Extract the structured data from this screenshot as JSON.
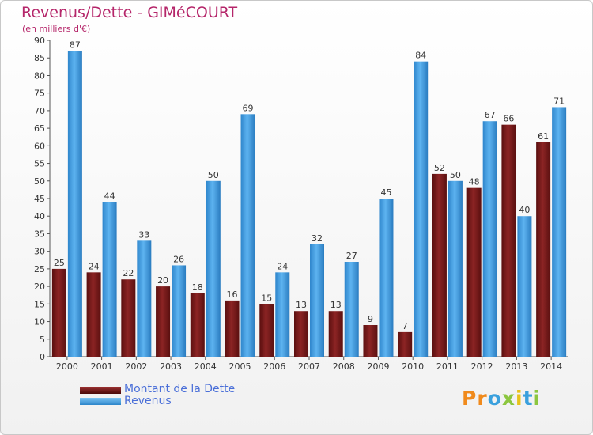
{
  "chart_data": {
    "type": "bar",
    "title": "Revenus/Dette - GIMéCOURT",
    "subtitle": "(en milliers d'€)",
    "categories": [
      "2000",
      "2001",
      "2002",
      "2003",
      "2004",
      "2005",
      "2006",
      "2007",
      "2008",
      "2009",
      "2010",
      "2011",
      "2012",
      "2013",
      "2014"
    ],
    "series": [
      {
        "name": "Montant de la Dette",
        "color": "#7a1a1a",
        "values": [
          25,
          24,
          22,
          20,
          18,
          16,
          15,
          13,
          13,
          9,
          7,
          52,
          48,
          66,
          61
        ]
      },
      {
        "name": "Revenus",
        "color": "#3d9be0",
        "values": [
          87,
          44,
          33,
          26,
          50,
          69,
          24,
          32,
          27,
          45,
          84,
          50,
          67,
          40,
          71
        ]
      }
    ],
    "ylim": [
      0,
      90
    ],
    "ytick_step": 5,
    "yticks": [
      "0",
      "5",
      "10",
      "15",
      "20",
      "25",
      "30",
      "35",
      "40",
      "45",
      "50",
      "55",
      "60",
      "65",
      "70",
      "75",
      "80",
      "85",
      "90"
    ],
    "grid": false,
    "legend_position": "bottom-left",
    "xlabel": "",
    "ylabel": ""
  },
  "logo": {
    "text": "Proxiti",
    "letters": [
      {
        "ch": "P",
        "color": "#f08a1c"
      },
      {
        "ch": "r",
        "color": "#f08a1c"
      },
      {
        "ch": "o",
        "color": "#3aa0dd"
      },
      {
        "ch": "x",
        "color": "#8cc63f"
      },
      {
        "ch": "i",
        "color": "#e8c21a"
      },
      {
        "ch": "t",
        "color": "#3aa0dd"
      },
      {
        "ch": "i",
        "color": "#8cc63f"
      }
    ]
  }
}
